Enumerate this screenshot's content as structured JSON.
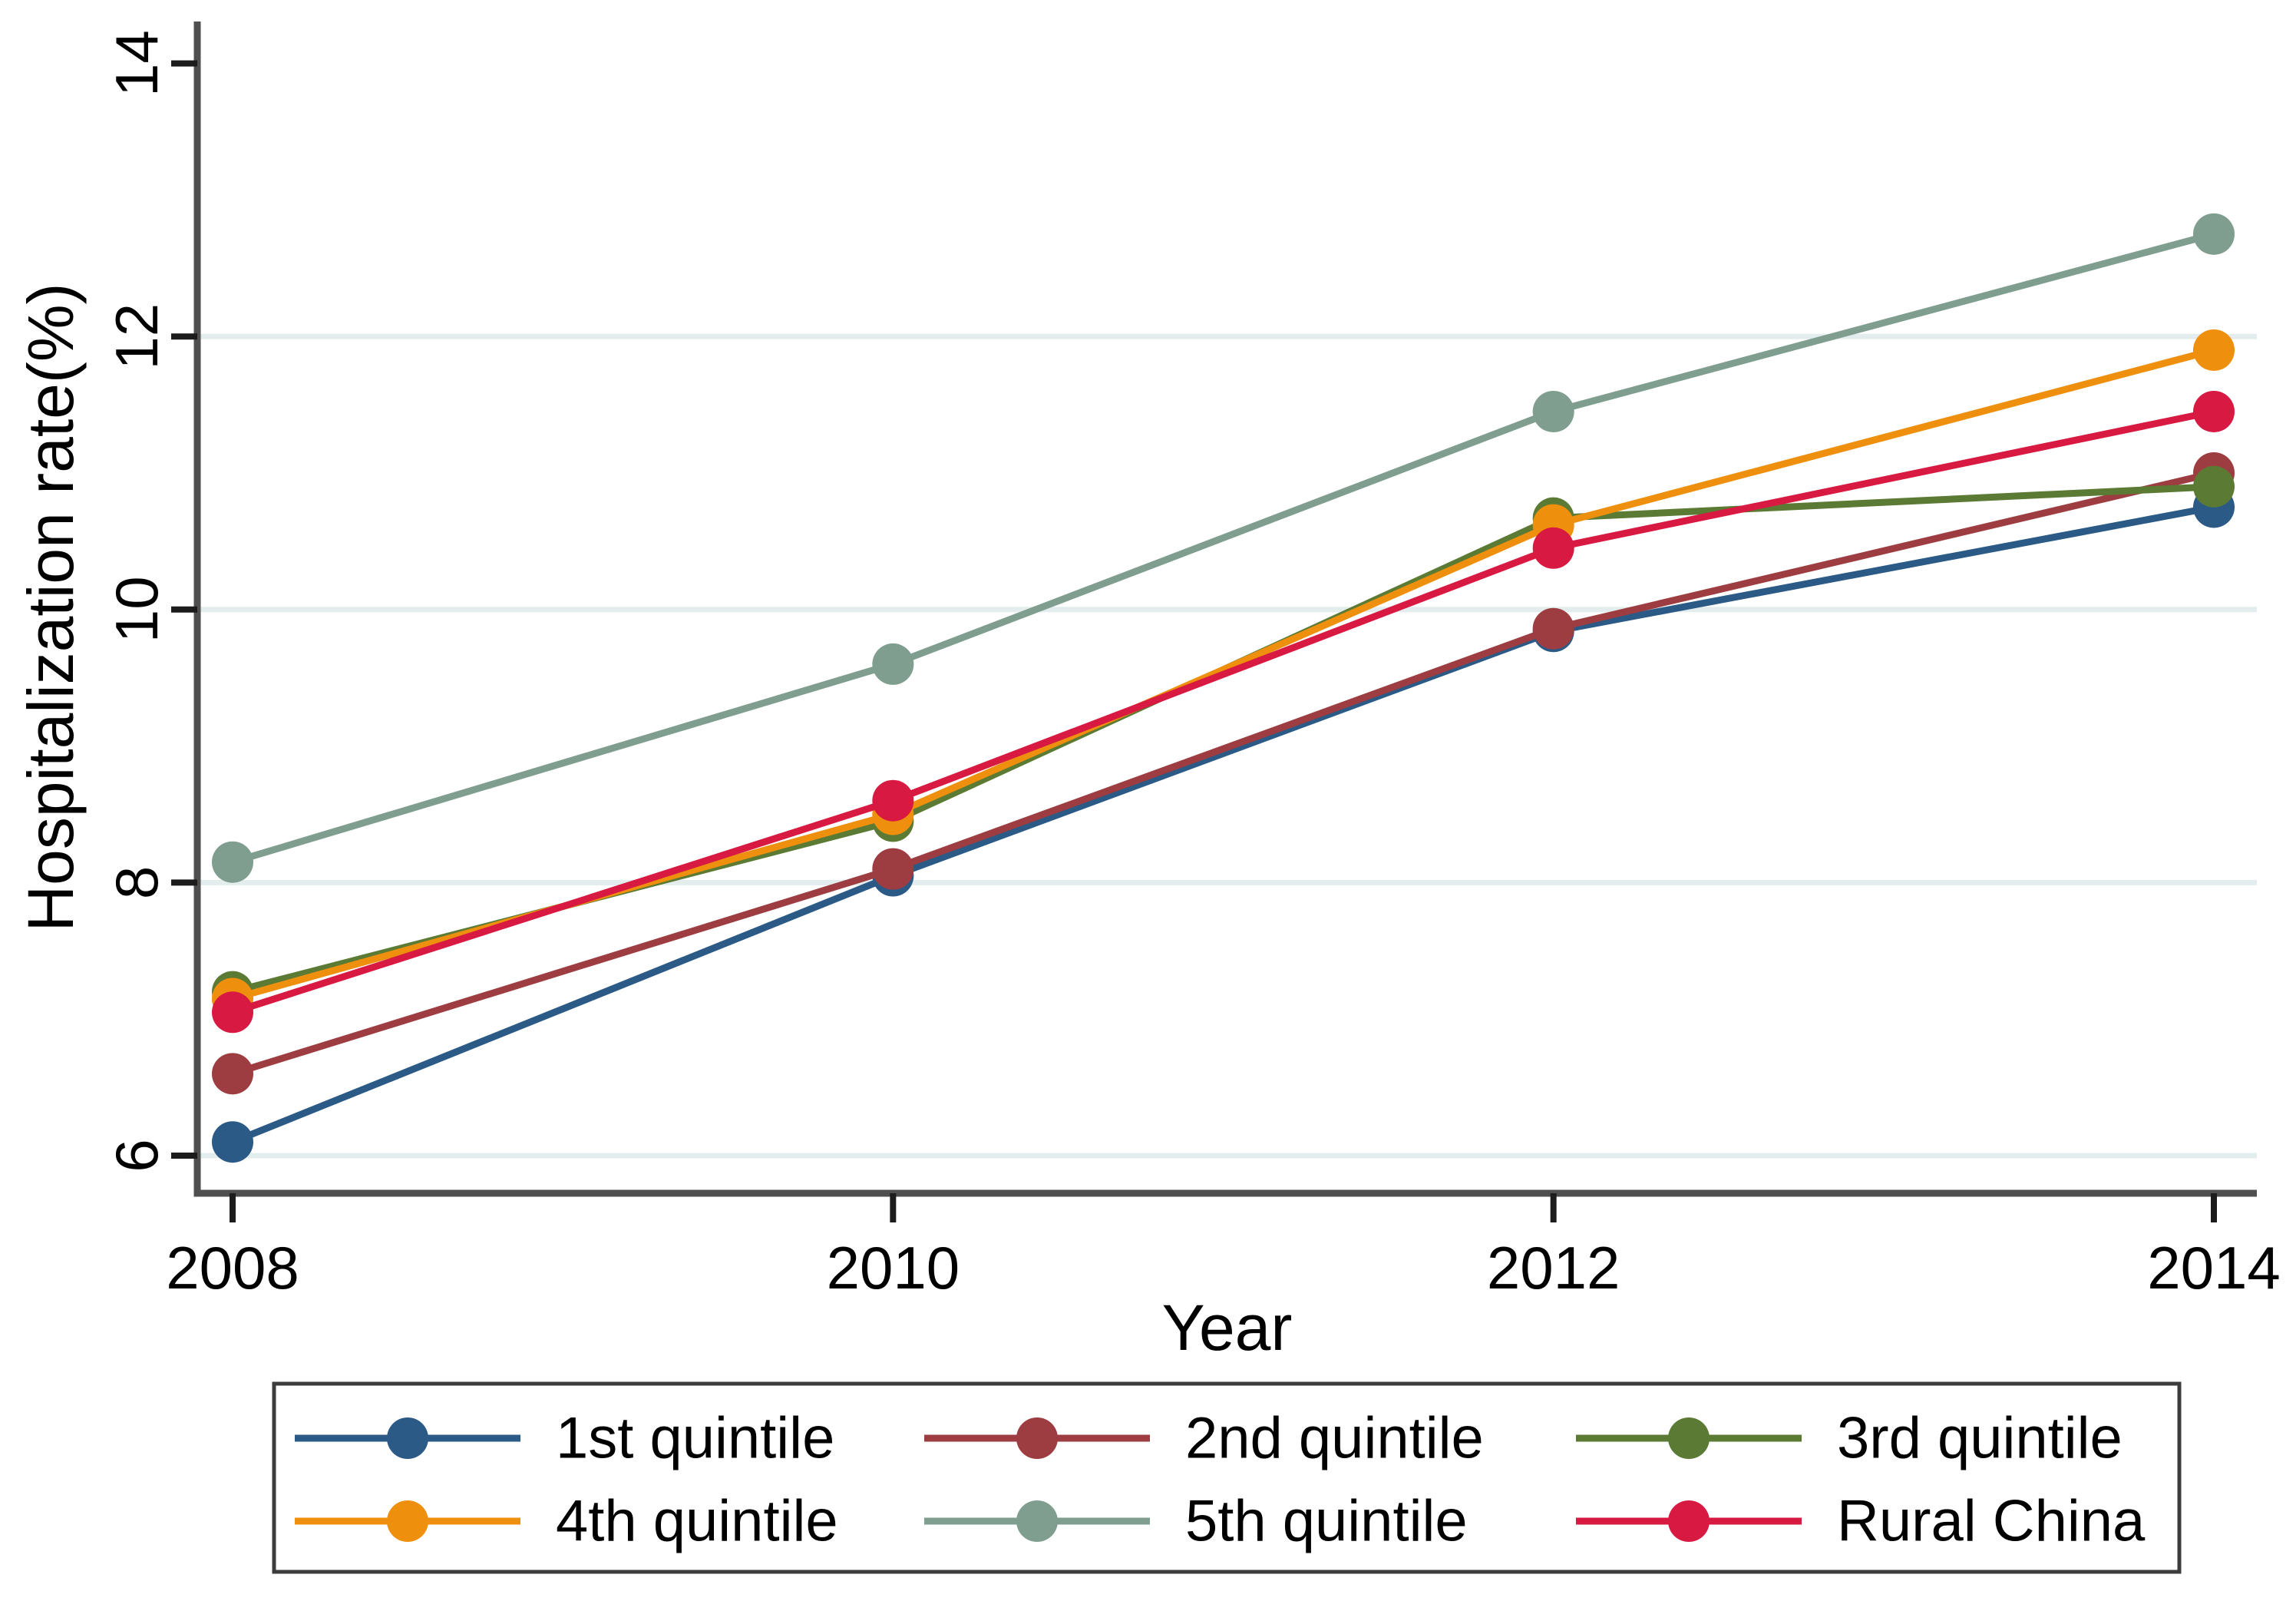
{
  "figure": {
    "background": "#ffffff",
    "axis_color": "#4f4f4f",
    "tick_color": "#1c1c1c",
    "grid_color": "#e3edee",
    "legend_border_color": "#3c3c3c",
    "text_color": "#000000"
  },
  "chart_data": {
    "type": "line",
    "title": "",
    "xlabel": "Year",
    "ylabel": "Hospitalization rate(%)",
    "x": [
      2008,
      2010,
      2012,
      2014
    ],
    "x_tick_labels": [
      "2008",
      "2010",
      "2012",
      "2014"
    ],
    "y_ticks": [
      6,
      8,
      10,
      12,
      14
    ],
    "y_tick_labels": [
      "6",
      "8",
      "10",
      "12",
      "14"
    ],
    "y_grid_ticks": [
      6,
      8,
      10,
      12
    ],
    "xlim": [
      2007.88,
      2014.13
    ],
    "ylim": [
      5.7,
      14.31
    ],
    "grid": "horizontal",
    "legend_position": "bottom",
    "marker": "circle",
    "series": [
      {
        "name": "1st quintile",
        "color": "#2b5a86",
        "values": [
          6.1,
          8.05,
          9.84,
          10.75
        ]
      },
      {
        "name": "2nd quintile",
        "color": "#9d3d41",
        "values": [
          6.6,
          8.1,
          9.86,
          11.0
        ]
      },
      {
        "name": "3rd quintile",
        "color": "#5b7a33",
        "values": [
          7.2,
          8.45,
          10.67,
          10.9
        ]
      },
      {
        "name": "4th quintile",
        "color": "#ef8f0e",
        "values": [
          7.15,
          8.5,
          10.62,
          11.9
        ]
      },
      {
        "name": "5th quintile",
        "color": "#7f9e90",
        "values": [
          8.15,
          9.6,
          11.45,
          12.75
        ]
      },
      {
        "name": "Rural China",
        "color": "#d81941",
        "values": [
          7.05,
          8.6,
          10.45,
          11.45
        ]
      }
    ]
  }
}
